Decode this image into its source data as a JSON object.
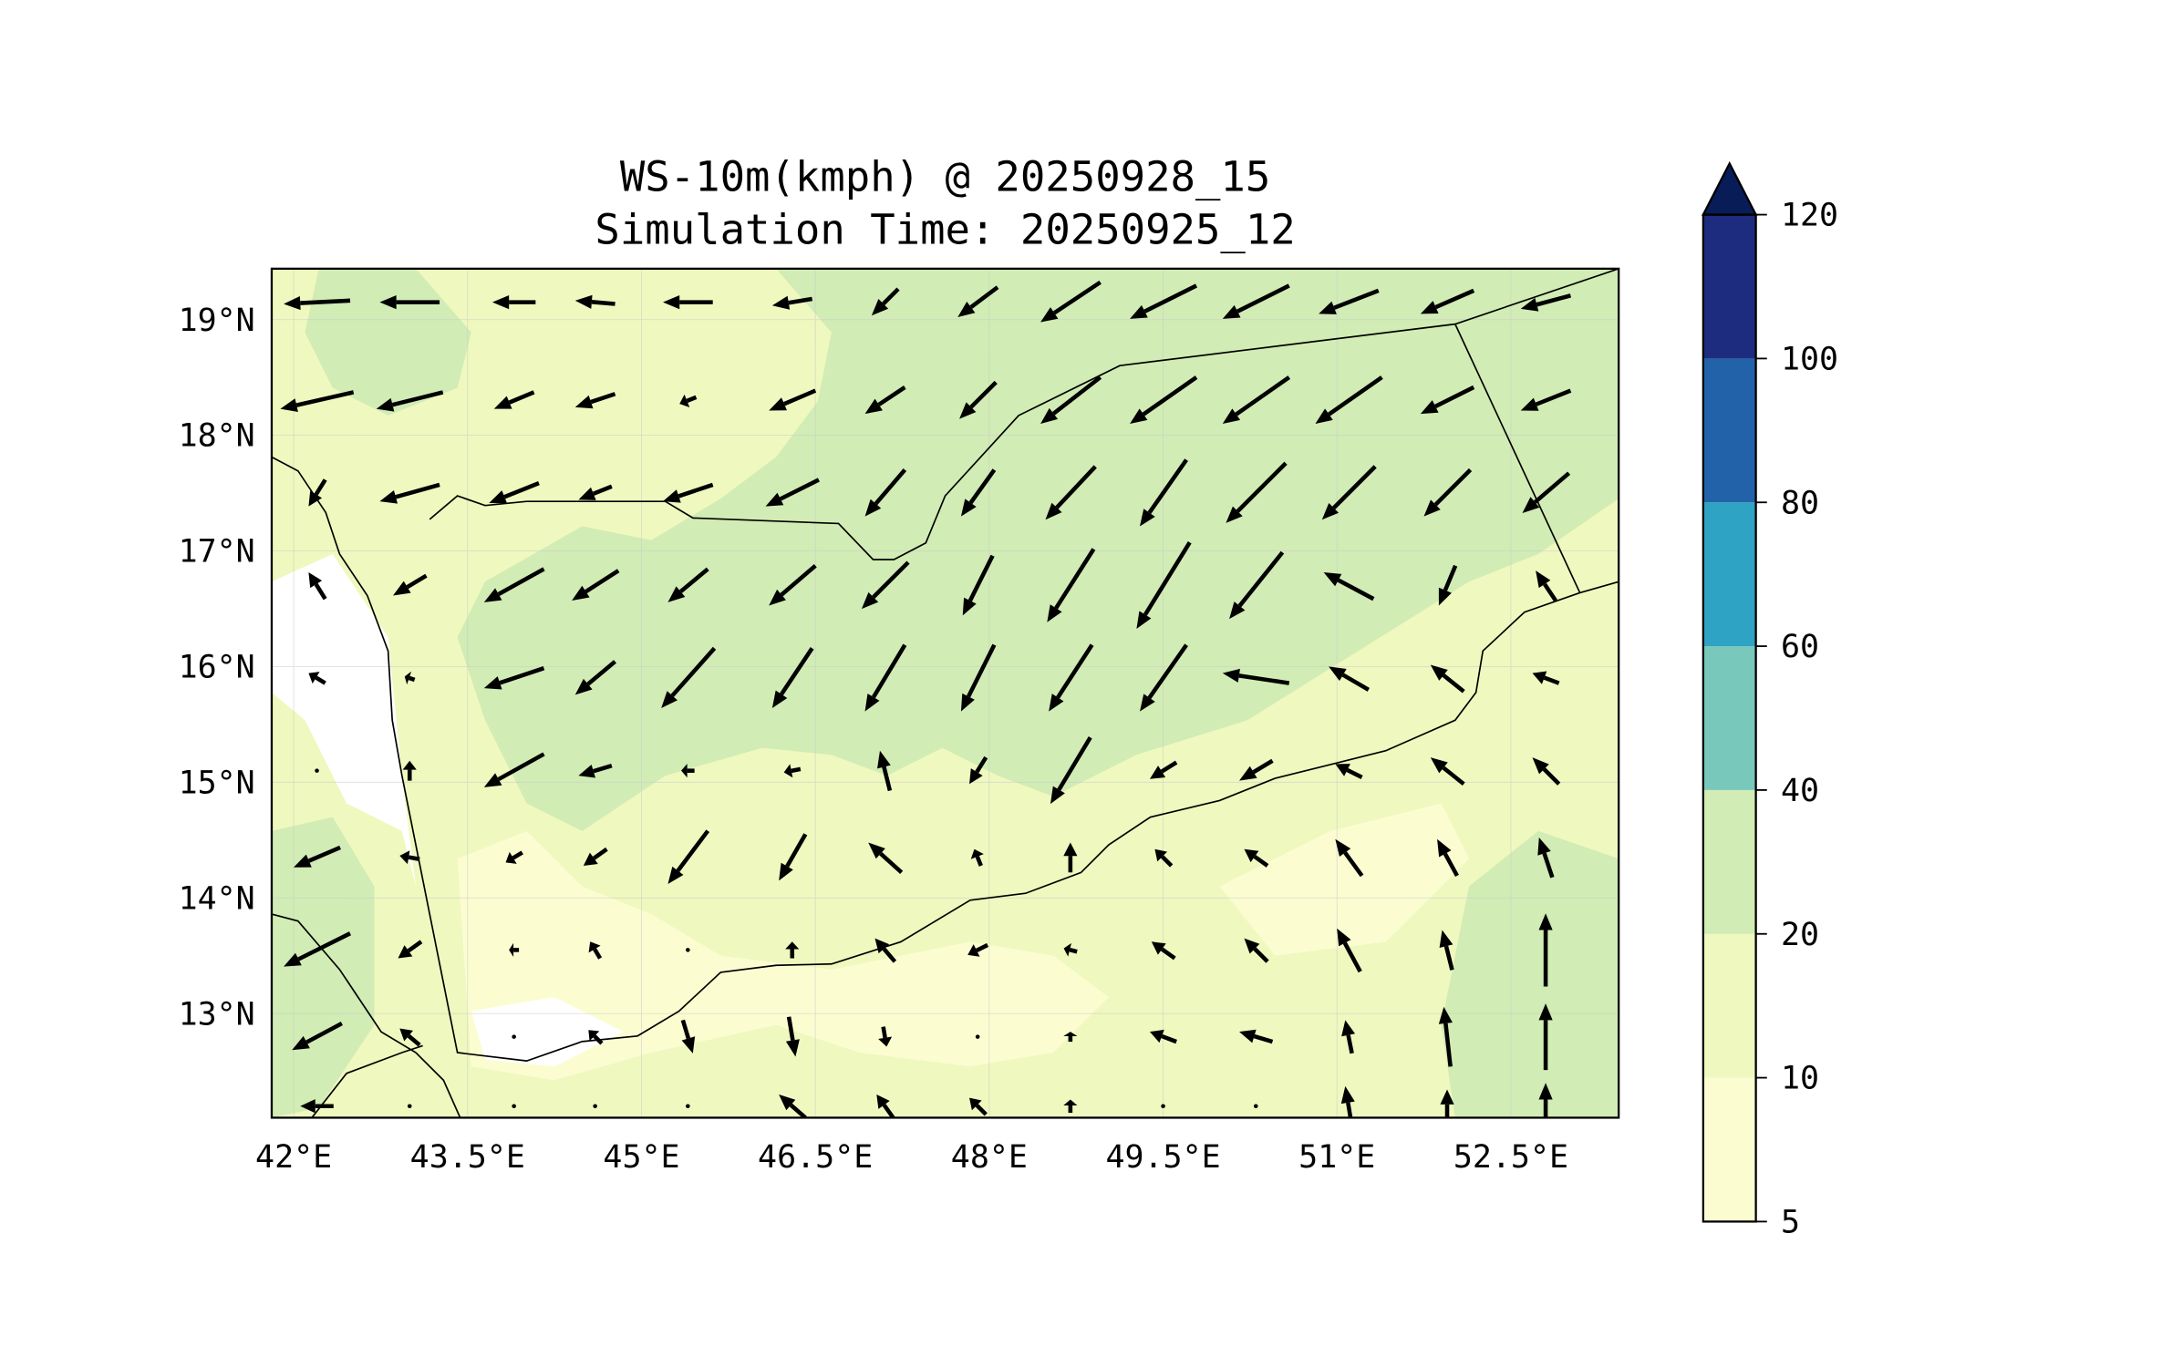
{
  "chart_data": {
    "type": "map-vector-contour",
    "title": [
      "WS-10m(kmph) @ 20250928_15",
      "Simulation Time: 20250925_12"
    ],
    "xlim": [
      41.81,
      53.43
    ],
    "ylim": [
      12.1,
      19.44
    ],
    "x_ticks": [
      {
        "v": 42,
        "label": "42°E"
      },
      {
        "v": 43.5,
        "label": "43.5°E"
      },
      {
        "v": 45,
        "label": "45°E"
      },
      {
        "v": 46.5,
        "label": "46.5°E"
      },
      {
        "v": 48,
        "label": "48°E"
      },
      {
        "v": 49.5,
        "label": "49.5°E"
      },
      {
        "v": 51,
        "label": "51°E"
      },
      {
        "v": 52.5,
        "label": "52.5°E"
      }
    ],
    "y_ticks": [
      {
        "v": 19,
        "label": "19°N"
      },
      {
        "v": 18,
        "label": "18°N"
      },
      {
        "v": 17,
        "label": "17°N"
      },
      {
        "v": 16,
        "label": "16°N"
      },
      {
        "v": 15,
        "label": "15°N"
      },
      {
        "v": 14,
        "label": "14°N"
      },
      {
        "v": 13,
        "label": "13°N"
      }
    ],
    "grid": true,
    "colorbar": {
      "levels": [
        5,
        10,
        20,
        40,
        60,
        80,
        100,
        120
      ],
      "labels": [
        "5",
        "10",
        "20",
        "40",
        "60",
        "80",
        "100",
        "120"
      ],
      "colors": [
        "#fbfdd1",
        "#eff8be",
        "#d1ecb4",
        "#78c9bb",
        "#2fa3c3",
        "#2262a8",
        "#1e2c7f"
      ],
      "extend_color": "#081d58",
      "extend": "max"
    },
    "vectors": {
      "lons": [
        42.2,
        43.0,
        43.9,
        44.6,
        45.4,
        46.3,
        47.1,
        47.9,
        48.7,
        49.5,
        50.3,
        51.1,
        51.95,
        52.8
      ],
      "lats": [
        19.15,
        18.3,
        17.5,
        16.7,
        15.9,
        15.1,
        14.35,
        13.55,
        12.8,
        12.2
      ],
      "uv": [
        [
          [
            -20,
            -1
          ],
          [
            -18,
            0
          ],
          [
            -13,
            0
          ],
          [
            -12,
            1
          ],
          [
            -15,
            0
          ],
          [
            -12,
            -2
          ],
          [
            -8,
            -8
          ],
          [
            -12,
            -9
          ],
          [
            -18,
            -12
          ],
          [
            -20,
            -10
          ],
          [
            -20,
            -10
          ],
          [
            -18,
            -7
          ],
          [
            -16,
            -7
          ],
          [
            -15,
            -4
          ]
        ],
        [
          [
            -22,
            -5
          ],
          [
            -20,
            -5
          ],
          [
            -12,
            -5
          ],
          [
            -12,
            -4
          ],
          [
            -5,
            -2
          ],
          [
            -14,
            -6
          ],
          [
            -12,
            -8
          ],
          [
            -11,
            -11
          ],
          [
            -18,
            -14
          ],
          [
            -20,
            -14
          ],
          [
            -20,
            -14
          ],
          [
            -20,
            -14
          ],
          [
            -16,
            -8
          ],
          [
            -15,
            -6
          ]
        ],
        [
          [
            -5,
            -8
          ],
          [
            -18,
            -5
          ],
          [
            -15,
            -6
          ],
          [
            -10,
            -4
          ],
          [
            -15,
            -5
          ],
          [
            -16,
            -8
          ],
          [
            -12,
            -14
          ],
          [
            -10,
            -14
          ],
          [
            -15,
            -16
          ],
          [
            -14,
            -20
          ],
          [
            -18,
            -18
          ],
          [
            -16,
            -16
          ],
          [
            -14,
            -14
          ],
          [
            -14,
            -12
          ]
        ],
        [
          [
            -5,
            8
          ],
          [
            -10,
            -6
          ],
          [
            -18,
            -10
          ],
          [
            -14,
            -9
          ],
          [
            -12,
            -10
          ],
          [
            -14,
            -12
          ],
          [
            -14,
            -14
          ],
          [
            -9,
            -18
          ],
          [
            -14,
            -22
          ],
          [
            -16,
            -26
          ],
          [
            -16,
            -20
          ],
          [
            -15,
            8
          ],
          [
            -5,
            -12
          ],
          [
            -6,
            9
          ]
        ],
        [
          [
            -5,
            3
          ],
          [
            -3,
            1
          ],
          [
            -18,
            -6
          ],
          [
            -12,
            -10
          ],
          [
            -16,
            -18
          ],
          [
            -12,
            -18
          ],
          [
            -12,
            -20
          ],
          [
            -10,
            -20
          ],
          [
            -13,
            -20
          ],
          [
            -14,
            -20
          ],
          [
            -20,
            3
          ],
          [
            -12,
            7
          ],
          [
            -10,
            8
          ],
          [
            -8,
            3
          ]
        ],
        [
          [
            0,
            0
          ],
          [
            0,
            6
          ],
          [
            -18,
            -10
          ],
          [
            -10,
            -3
          ],
          [
            -4,
            0
          ],
          [
            -5,
            -1
          ],
          [
            -3,
            12
          ],
          [
            -5,
            -8
          ],
          [
            -12,
            -20
          ],
          [
            -8,
            -5
          ],
          [
            -10,
            -6
          ],
          [
            -8,
            4
          ],
          [
            -10,
            8
          ],
          [
            -8,
            8
          ]
        ],
        [
          [
            -14,
            -6
          ],
          [
            -6,
            1
          ],
          [
            -5,
            -3
          ],
          [
            -7,
            -5
          ],
          [
            -12,
            -16
          ],
          [
            -8,
            -14
          ],
          [
            -10,
            9
          ],
          [
            -2,
            5
          ],
          [
            0,
            9
          ],
          [
            -5,
            5
          ],
          [
            -7,
            5
          ],
          [
            -8,
            11
          ],
          [
            -6,
            11
          ],
          [
            -4,
            12
          ]
        ],
        [
          [
            -20,
            -10
          ],
          [
            -7,
            -5
          ],
          [
            -3,
            0
          ],
          [
            -3,
            5
          ],
          [
            0,
            0
          ],
          [
            0,
            5
          ],
          [
            -6,
            7
          ],
          [
            -6,
            -3
          ],
          [
            -4,
            1
          ],
          [
            -7,
            5
          ],
          [
            -7,
            7
          ],
          [
            -7,
            13
          ],
          [
            -3,
            12
          ],
          [
            0,
            22
          ]
        ],
        [
          [
            -15,
            -8
          ],
          [
            -6,
            5
          ],
          [
            0,
            0
          ],
          [
            -4,
            4
          ],
          [
            3,
            -10
          ],
          [
            2,
            -12
          ],
          [
            1,
            -6
          ],
          [
            0,
            0
          ],
          [
            0,
            3
          ],
          [
            -8,
            3
          ],
          [
            -10,
            3
          ],
          [
            -2,
            10
          ],
          [
            -2,
            18
          ],
          [
            0,
            20
          ]
        ],
        [
          [
            -10,
            0
          ],
          [
            0,
            0
          ],
          [
            0,
            0
          ],
          [
            0,
            0
          ],
          [
            0,
            0
          ],
          [
            -8,
            7
          ],
          [
            -5,
            7
          ],
          [
            -5,
            5
          ],
          [
            0,
            4
          ],
          [
            0,
            0
          ],
          [
            0,
            0
          ],
          [
            -2,
            12
          ],
          [
            0,
            10
          ],
          [
            0,
            14
          ]
        ]
      ]
    }
  }
}
